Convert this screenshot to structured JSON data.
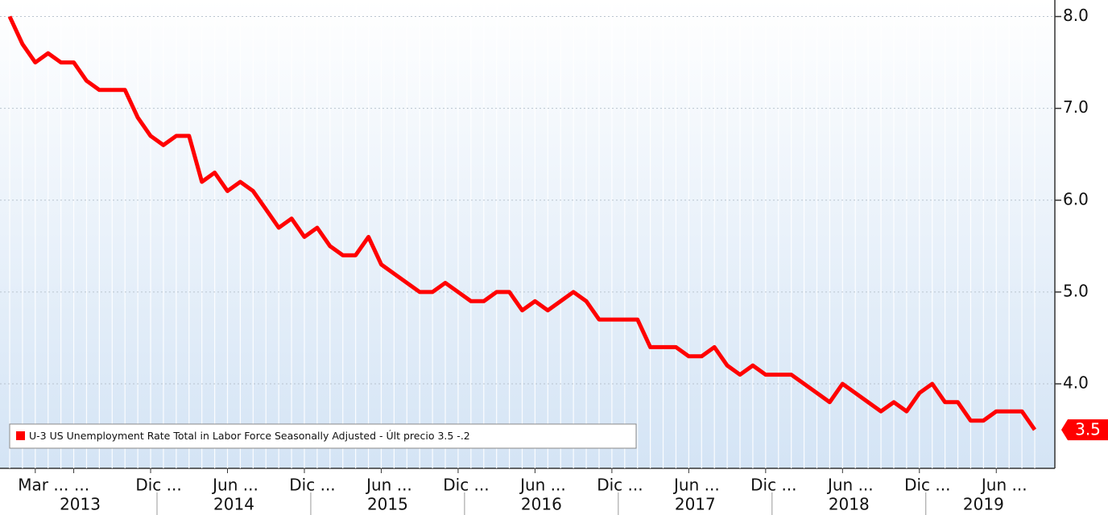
{
  "chart_data": {
    "type": "line",
    "x": [
      "2013-01",
      "2013-02",
      "2013-03",
      "2013-04",
      "2013-05",
      "2013-06",
      "2013-07",
      "2013-08",
      "2013-09",
      "2013-10",
      "2013-11",
      "2013-12",
      "2014-01",
      "2014-02",
      "2014-03",
      "2014-04",
      "2014-05",
      "2014-06",
      "2014-07",
      "2014-08",
      "2014-09",
      "2014-10",
      "2014-11",
      "2014-12",
      "2015-01",
      "2015-02",
      "2015-03",
      "2015-04",
      "2015-05",
      "2015-06",
      "2015-07",
      "2015-08",
      "2015-09",
      "2015-10",
      "2015-11",
      "2015-12",
      "2016-01",
      "2016-02",
      "2016-03",
      "2016-04",
      "2016-05",
      "2016-06",
      "2016-07",
      "2016-08",
      "2016-09",
      "2016-10",
      "2016-11",
      "2016-12",
      "2017-01",
      "2017-02",
      "2017-03",
      "2017-04",
      "2017-05",
      "2017-06",
      "2017-07",
      "2017-08",
      "2017-09",
      "2017-10",
      "2017-11",
      "2017-12",
      "2018-01",
      "2018-02",
      "2018-03",
      "2018-04",
      "2018-05",
      "2018-06",
      "2018-07",
      "2018-08",
      "2018-09",
      "2018-10",
      "2018-11",
      "2018-12",
      "2019-01",
      "2019-02",
      "2019-03",
      "2019-04",
      "2019-05",
      "2019-06",
      "2019-07",
      "2019-08",
      "2019-09"
    ],
    "series": [
      {
        "name": "U-3 US Unemployment Rate Total in Labor Force Seasonally Adjusted",
        "color": "#ff0000",
        "values": [
          8.0,
          7.7,
          7.5,
          7.6,
          7.5,
          7.5,
          7.3,
          7.2,
          7.2,
          7.2,
          6.9,
          6.7,
          6.6,
          6.7,
          6.7,
          6.2,
          6.3,
          6.1,
          6.2,
          6.1,
          5.9,
          5.7,
          5.8,
          5.6,
          5.7,
          5.5,
          5.4,
          5.4,
          5.6,
          5.3,
          5.2,
          5.1,
          5.0,
          5.0,
          5.1,
          5.0,
          4.9,
          4.9,
          5.0,
          5.0,
          4.8,
          4.9,
          4.8,
          4.9,
          5.0,
          4.9,
          4.7,
          4.7,
          4.7,
          4.7,
          4.4,
          4.4,
          4.4,
          4.3,
          4.3,
          4.4,
          4.2,
          4.1,
          4.2,
          4.1,
          4.1,
          4.1,
          4.0,
          3.9,
          3.8,
          4.0,
          3.9,
          3.8,
          3.7,
          3.8,
          3.7,
          3.9,
          4.0,
          3.8,
          3.8,
          3.6,
          3.6,
          3.7,
          3.7,
          3.7,
          3.5
        ]
      }
    ],
    "legend_suffix": "- Últ precio 3.5  -.2",
    "ylim": [
      3.08,
      8.18
    ],
    "yticks": [
      {
        "value": 4,
        "label": "4.0"
      },
      {
        "value": 5,
        "label": "5.0"
      },
      {
        "value": 6,
        "label": "6.0"
      },
      {
        "value": 7,
        "label": "7.0"
      },
      {
        "value": 8,
        "label": "8.0"
      }
    ],
    "xticks": [
      {
        "value": "2013-03",
        "label": "Mar ..."
      },
      {
        "value": "2013-06",
        "label": "..."
      },
      {
        "value": "2013-12",
        "label": "Dic ..."
      },
      {
        "value": "2014-06",
        "label": "Jun ..."
      },
      {
        "value": "2014-12",
        "label": "Dic ..."
      },
      {
        "value": "2015-06",
        "label": "Jun ..."
      },
      {
        "value": "2015-12",
        "label": "Dic ..."
      },
      {
        "value": "2016-06",
        "label": "Jun ..."
      },
      {
        "value": "2016-12",
        "label": "Dic ..."
      },
      {
        "value": "2017-06",
        "label": "Jun ..."
      },
      {
        "value": "2017-12",
        "label": "Dic ..."
      },
      {
        "value": "2018-06",
        "label": "Jun ..."
      },
      {
        "value": "2018-12",
        "label": "Dic ..."
      },
      {
        "value": "2019-06",
        "label": "Jun ..."
      }
    ],
    "years": [
      "2013",
      "2014",
      "2015",
      "2016",
      "2017",
      "2018",
      "2019"
    ],
    "grid": true
  }
}
